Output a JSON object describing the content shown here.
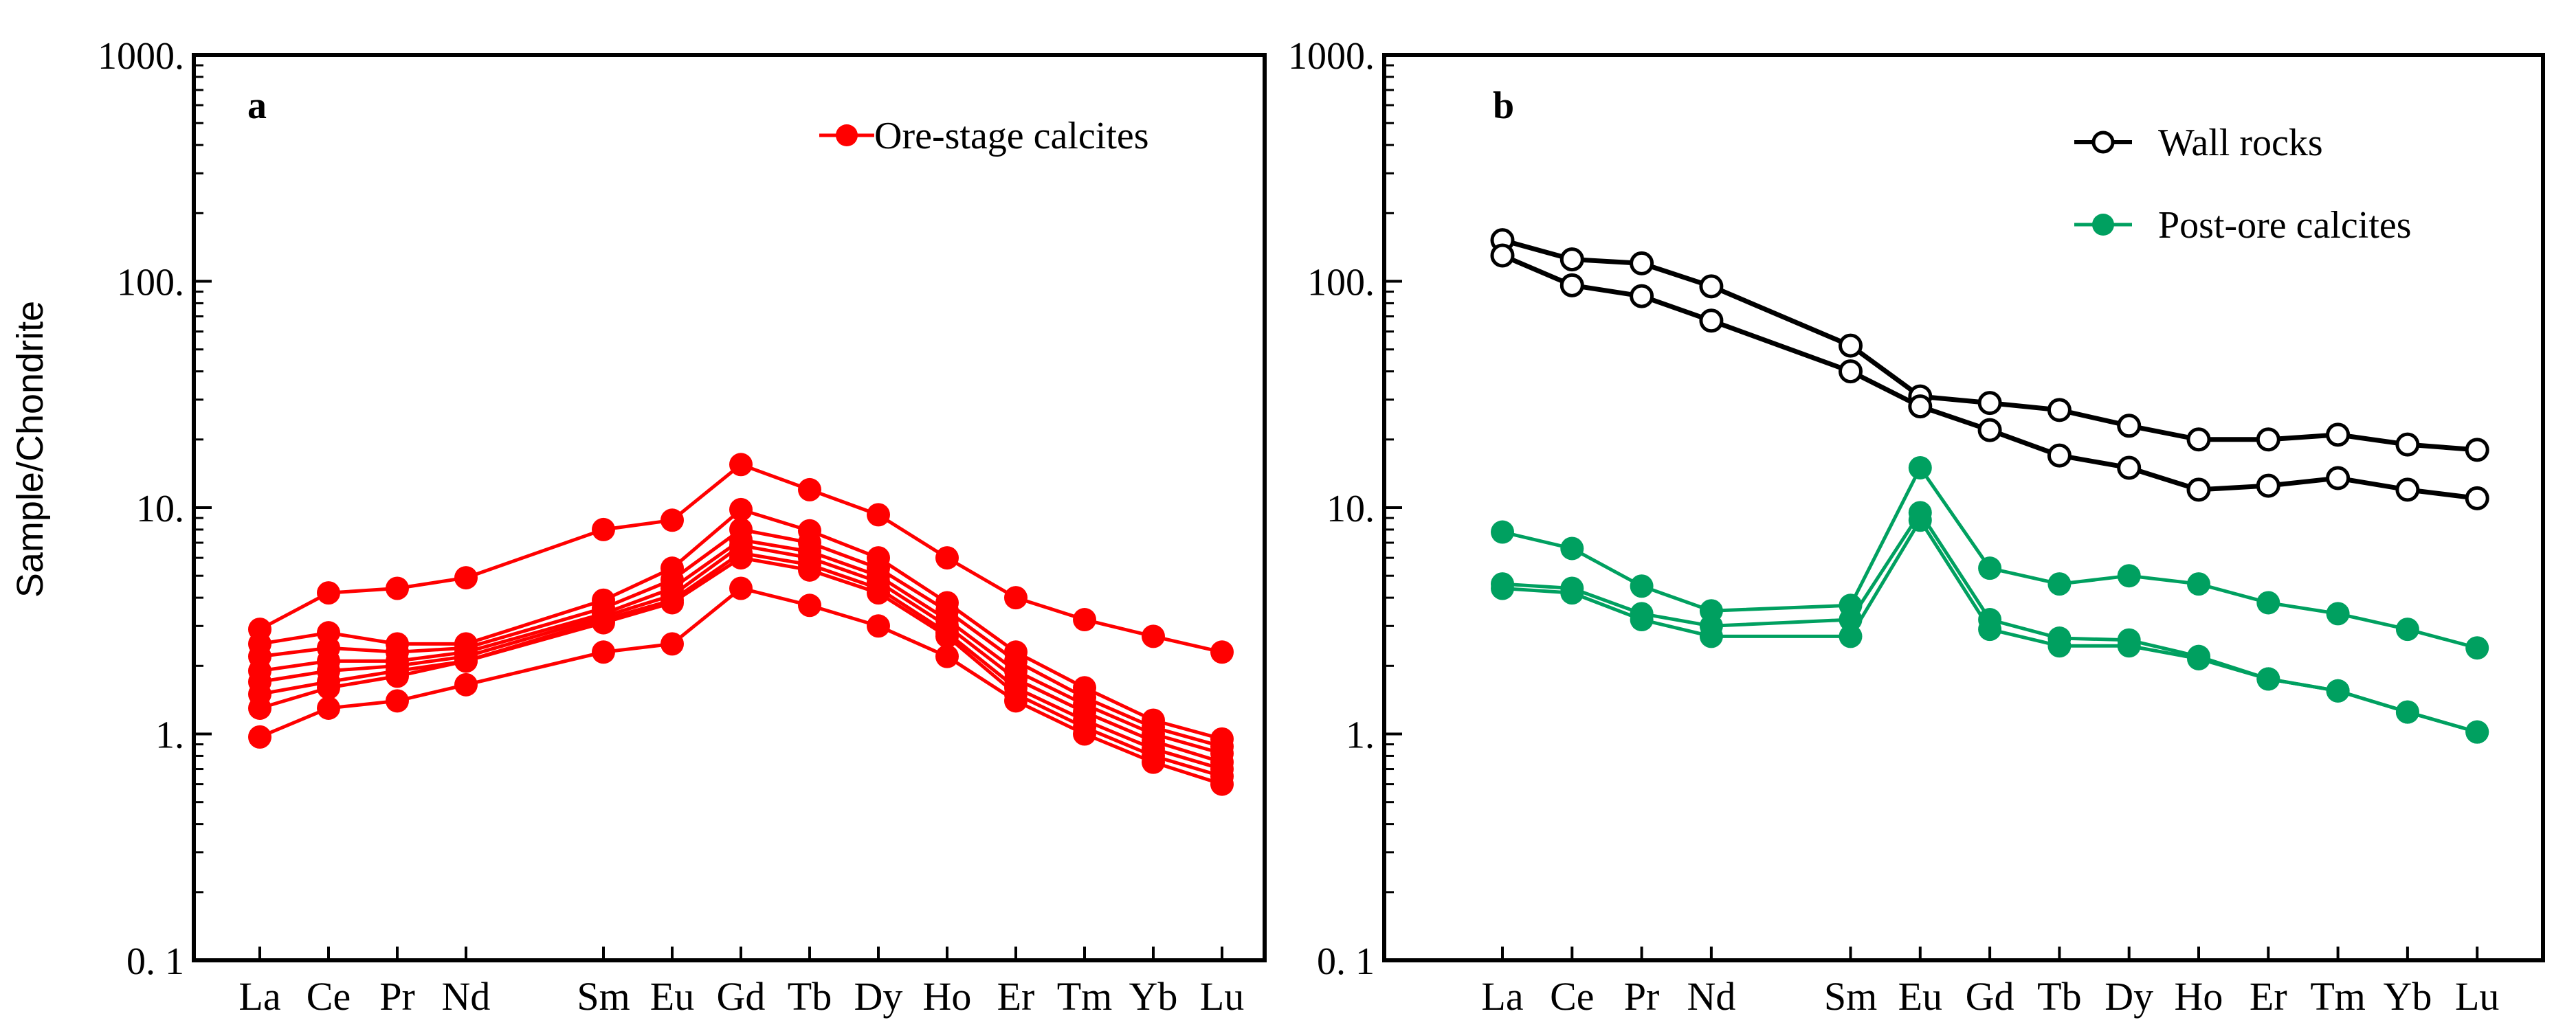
{
  "chart_data": [
    {
      "panel": "a",
      "type": "line",
      "y_scale": "log",
      "ylim": [
        0.1,
        1000
      ],
      "ylabel": "Sample/Chondrite",
      "y_ticks": [
        {
          "value": 0.1,
          "label": "0. 1"
        },
        {
          "value": 1,
          "label": "1."
        },
        {
          "value": 10,
          "label": "10."
        },
        {
          "value": 100,
          "label": "100."
        },
        {
          "value": 1000,
          "label": "1000."
        }
      ],
      "x_elements": [
        "La",
        "Ce",
        "Pr",
        "Nd",
        "Sm",
        "Eu",
        "Gd",
        "Tb",
        "Dy",
        "Ho",
        "Er",
        "Tm",
        "Yb",
        "Lu"
      ],
      "x_index": [
        0,
        1,
        2,
        3,
        5,
        6,
        7,
        8,
        9,
        10,
        11,
        12,
        13,
        14
      ],
      "legend_position": "top-right",
      "series": [
        {
          "group": "Ore-stage  calcites",
          "color": "#ff0000",
          "marker": "filled-circle",
          "values": [
            2.9,
            4.2,
            4.4,
            4.9,
            8.0,
            8.8,
            15.5,
            12.0,
            9.3,
            6.0,
            4.0,
            3.2,
            2.7,
            2.3
          ]
        },
        {
          "group": "Ore-stage  calcites",
          "color": "#ff0000",
          "marker": "filled-circle",
          "values": [
            2.5,
            2.8,
            2.5,
            2.5,
            3.9,
            5.4,
            9.8,
            7.9,
            6.0,
            3.8,
            2.3,
            1.6,
            1.15,
            0.95
          ]
        },
        {
          "group": "Ore-stage  calcites",
          "color": "#ff0000",
          "marker": "filled-circle",
          "values": [
            2.2,
            2.4,
            2.3,
            2.4,
            3.6,
            4.8,
            8.0,
            7.0,
            5.4,
            3.5,
            2.1,
            1.45,
            1.07,
            0.88
          ]
        },
        {
          "group": "Ore-stage  calcites",
          "color": "#ff0000",
          "marker": "filled-circle",
          "values": [
            1.9,
            2.1,
            2.1,
            2.3,
            3.4,
            4.4,
            7.2,
            6.4,
            5.0,
            3.2,
            1.9,
            1.35,
            1.0,
            0.82
          ]
        },
        {
          "group": "Ore-stage  calcites",
          "color": "#ff0000",
          "marker": "filled-circle",
          "values": [
            1.7,
            1.9,
            2.0,
            2.2,
            3.3,
            4.1,
            6.8,
            6.0,
            4.7,
            3.0,
            1.75,
            1.25,
            0.93,
            0.75
          ]
        },
        {
          "group": "Ore-stage  calcites",
          "color": "#ff0000",
          "marker": "filled-circle",
          "values": [
            1.5,
            1.7,
            1.9,
            2.1,
            3.2,
            3.9,
            6.3,
            5.6,
            4.4,
            2.8,
            1.6,
            1.15,
            0.86,
            0.7
          ]
        },
        {
          "group": "Ore-stage  calcites",
          "color": "#ff0000",
          "marker": "filled-circle",
          "values": [
            1.3,
            1.6,
            1.8,
            2.1,
            3.1,
            3.8,
            6.0,
            5.3,
            4.2,
            2.7,
            1.5,
            1.07,
            0.8,
            0.65
          ]
        },
        {
          "group": "Ore-stage  calcites",
          "color": "#ff0000",
          "marker": "filled-circle",
          "values": [
            0.97,
            1.3,
            1.4,
            1.65,
            2.3,
            2.5,
            4.4,
            3.7,
            3.0,
            2.2,
            1.4,
            1.0,
            0.75,
            0.6
          ]
        }
      ],
      "legend": [
        {
          "label": "Ore-stage  calcites",
          "color": "#ff0000",
          "marker": "filled-circle"
        }
      ]
    },
    {
      "panel": "b",
      "type": "line",
      "y_scale": "log",
      "ylim": [
        0.1,
        1000
      ],
      "ylabel": "",
      "y_ticks": [
        {
          "value": 0.1,
          "label": "0. 1"
        },
        {
          "value": 1,
          "label": "1."
        },
        {
          "value": 10,
          "label": "10."
        },
        {
          "value": 100,
          "label": "100."
        },
        {
          "value": 1000,
          "label": "1000."
        }
      ],
      "x_elements": [
        "La",
        "Ce",
        "Pr",
        "Nd",
        "Sm",
        "Eu",
        "Gd",
        "Tb",
        "Dy",
        "Ho",
        "Er",
        "Tm",
        "Yb",
        "Lu"
      ],
      "x_index": [
        0,
        1,
        2,
        3,
        5,
        6,
        7,
        8,
        9,
        10,
        11,
        12,
        13,
        14
      ],
      "legend_position": "top-right",
      "series": [
        {
          "group": "Wall rocks",
          "color": "#000000",
          "marker": "open-circle",
          "values": [
            152,
            125,
            120,
            95,
            52,
            31,
            29,
            27,
            23,
            20,
            20,
            21,
            19,
            18
          ]
        },
        {
          "group": "Wall rocks",
          "color": "#000000",
          "marker": "open-circle",
          "values": [
            130,
            96,
            86,
            67,
            40,
            28,
            22,
            17,
            15,
            12,
            12.5,
            13.5,
            12,
            11
          ]
        },
        {
          "group": "Post-ore calcites",
          "color": "#00a060",
          "marker": "filled-circle",
          "values": [
            7.8,
            6.6,
            4.5,
            3.5,
            3.7,
            15,
            5.4,
            4.6,
            5.0,
            4.6,
            3.8,
            3.4,
            2.9,
            2.4
          ]
        },
        {
          "group": "Post-ore calcites",
          "color": "#00a060",
          "marker": "filled-circle",
          "values": [
            4.6,
            4.4,
            3.4,
            3.0,
            3.2,
            9.5,
            3.2,
            2.65,
            2.6,
            2.2,
            1.75,
            1.55,
            1.25,
            1.02
          ]
        },
        {
          "group": "Post-ore calcites",
          "color": "#00a060",
          "marker": "filled-circle",
          "values": [
            4.4,
            4.2,
            3.2,
            2.7,
            2.7,
            8.8,
            2.9,
            2.45,
            2.45,
            2.15,
            1.75,
            1.55,
            1.25,
            1.02
          ]
        }
      ],
      "legend": [
        {
          "label": "Wall rocks",
          "color": "#000000",
          "marker": "open-circle"
        },
        {
          "label": "Post-ore calcites",
          "color": "#00a060",
          "marker": "filled-circle"
        }
      ]
    }
  ]
}
